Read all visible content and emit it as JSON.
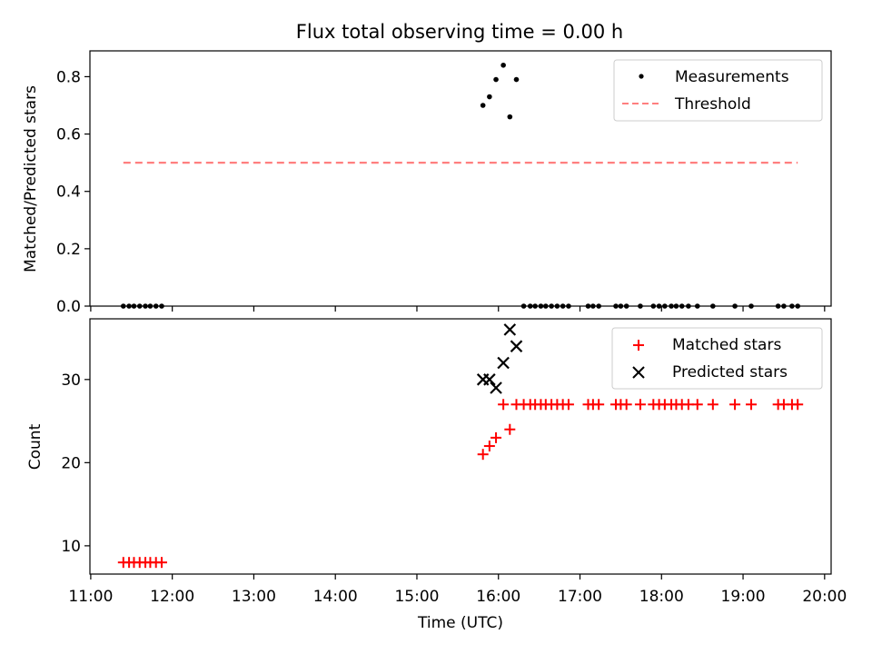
{
  "chart_data": {
    "type": "scatter",
    "title": "Flux total observing time = 0.00 h",
    "xlabel": "Time (UTC)",
    "xlim_hours": [
      10.99,
      20.08
    ],
    "xticks": [
      {
        "v": 11,
        "label": "11:00"
      },
      {
        "v": 12,
        "label": "12:00"
      },
      {
        "v": 13,
        "label": "13:00"
      },
      {
        "v": 14,
        "label": "14:00"
      },
      {
        "v": 15,
        "label": "15:00"
      },
      {
        "v": 16,
        "label": "16:00"
      },
      {
        "v": 17,
        "label": "17:00"
      },
      {
        "v": 18,
        "label": "18:00"
      },
      {
        "v": 19,
        "label": "19:00"
      },
      {
        "v": 20,
        "label": "20:00"
      }
    ],
    "panels": [
      {
        "ylabel": "Matched/Predicted stars",
        "ylim": [
          0,
          0.89
        ],
        "yticks": [
          {
            "v": 0.0,
            "label": "0.0"
          },
          {
            "v": 0.2,
            "label": "0.2"
          },
          {
            "v": 0.4,
            "label": "0.4"
          },
          {
            "v": 0.6,
            "label": "0.6"
          },
          {
            "v": 0.8,
            "label": "0.8"
          }
        ],
        "legend_position": "top-right",
        "series": [
          {
            "name": "Measurements",
            "marker": "dot",
            "color": "#000000",
            "x": [
              11.4,
              11.47,
              11.53,
              11.6,
              11.67,
              11.73,
              11.8,
              11.87,
              15.81,
              15.89,
              15.97,
              16.06,
              16.14,
              16.22,
              16.31,
              16.39,
              16.45,
              16.52,
              16.58,
              16.65,
              16.72,
              16.79,
              16.86,
              17.1,
              17.16,
              17.23,
              17.44,
              17.5,
              17.57,
              17.74,
              17.9,
              17.97,
              18.04,
              18.12,
              18.18,
              18.25,
              18.33,
              18.44,
              18.63,
              18.9,
              19.1,
              19.43,
              19.5,
              19.6,
              19.67
            ],
            "y": [
              0,
              0,
              0,
              0,
              0,
              0,
              0,
              0,
              0.7,
              0.73,
              0.79,
              0.84,
              0.66,
              0.79,
              0,
              0,
              0,
              0,
              0,
              0,
              0,
              0,
              0,
              0,
              0,
              0,
              0,
              0,
              0,
              0,
              0,
              0,
              0,
              0,
              0,
              0,
              0,
              0,
              0,
              0,
              0,
              0,
              0,
              0,
              0
            ]
          },
          {
            "name": "Threshold",
            "marker": "dashed-line",
            "color": "#ff7f7f",
            "x": [
              11.4,
              19.67
            ],
            "y": [
              0.5,
              0.5
            ]
          }
        ]
      },
      {
        "ylabel": "Count",
        "ylim": [
          6.6,
          37.3
        ],
        "yticks": [
          {
            "v": 10,
            "label": "10"
          },
          {
            "v": 20,
            "label": "20"
          },
          {
            "v": 30,
            "label": "30"
          }
        ],
        "legend_position": "top-right",
        "series": [
          {
            "name": "Matched stars",
            "marker": "plus",
            "color": "#ff0000",
            "x": [
              11.4,
              11.47,
              11.53,
              11.6,
              11.67,
              11.73,
              11.8,
              11.87,
              15.81,
              15.89,
              15.97,
              16.06,
              16.14,
              16.22,
              16.31,
              16.39,
              16.45,
              16.52,
              16.58,
              16.65,
              16.72,
              16.79,
              16.86,
              17.1,
              17.16,
              17.23,
              17.44,
              17.5,
              17.57,
              17.74,
              17.9,
              17.97,
              18.04,
              18.12,
              18.18,
              18.25,
              18.33,
              18.44,
              18.63,
              18.9,
              19.1,
              19.43,
              19.5,
              19.6,
              19.67
            ],
            "y": [
              8,
              8,
              8,
              8,
              8,
              8,
              8,
              8,
              21,
              22,
              23,
              27,
              24,
              27,
              27,
              27,
              27,
              27,
              27,
              27,
              27,
              27,
              27,
              27,
              27,
              27,
              27,
              27,
              27,
              27,
              27,
              27,
              27,
              27,
              27,
              27,
              27,
              27,
              27,
              27,
              27,
              27,
              27,
              27,
              27
            ]
          },
          {
            "name": "Predicted stars",
            "marker": "x",
            "color": "#000000",
            "x": [
              15.81,
              15.89,
              15.97,
              16.06,
              16.14,
              16.22
            ],
            "y": [
              30,
              30,
              29,
              32,
              36,
              34
            ]
          }
        ]
      }
    ]
  }
}
